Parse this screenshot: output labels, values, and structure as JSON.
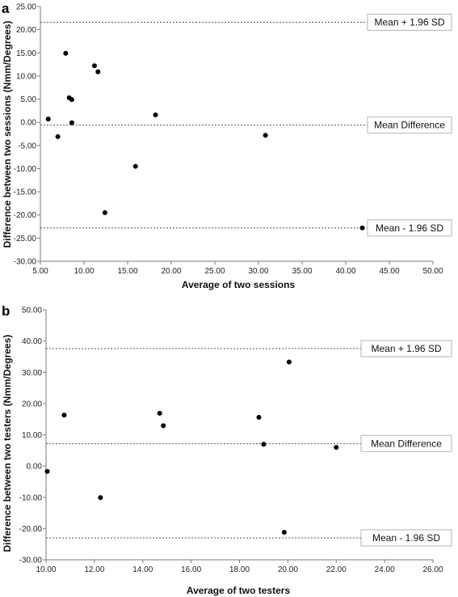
{
  "chart_data": [
    {
      "type": "scatter",
      "panel_label": "a",
      "xlabel": "Average of two sessions",
      "ylabel": "Difference between two sessions (Nmm/Degrees)",
      "xlim": [
        5,
        50
      ],
      "ylim": [
        -30,
        25
      ],
      "x_ticks": [
        "5.00",
        "10.00",
        "15.00",
        "20.00",
        "25.00",
        "30.00",
        "35.00",
        "40.00",
        "45.00",
        "50.00"
      ],
      "y_ticks": [
        "25.00",
        "20.00",
        "15.00",
        "10.00",
        "5.00",
        "0.00",
        "-5.00",
        "-10.00",
        "-15.00",
        "-20.00",
        "-25.00",
        "-30.00"
      ],
      "x_tick_values": [
        5,
        10,
        15,
        20,
        25,
        30,
        35,
        40,
        45,
        50
      ],
      "y_tick_values": [
        25,
        20,
        15,
        10,
        5,
        0,
        -5,
        -10,
        -15,
        -20,
        -25,
        -30
      ],
      "points": [
        {
          "x": 5.9,
          "y": 0.7
        },
        {
          "x": 7.0,
          "y": -3.1
        },
        {
          "x": 7.9,
          "y": 14.9
        },
        {
          "x": 8.3,
          "y": 5.3
        },
        {
          "x": 8.6,
          "y": 4.9
        },
        {
          "x": 8.6,
          "y": -0.1
        },
        {
          "x": 11.2,
          "y": 12.2
        },
        {
          "x": 11.6,
          "y": 10.9
        },
        {
          "x": 12.4,
          "y": -19.5
        },
        {
          "x": 15.9,
          "y": -9.5
        },
        {
          "x": 18.2,
          "y": 1.6
        },
        {
          "x": 30.8,
          "y": -2.8
        },
        {
          "x": 41.9,
          "y": -22.8
        }
      ],
      "reference_lines": [
        {
          "label": "Mean + 1.96 SD",
          "y": 21.6
        },
        {
          "label": "Mean Difference",
          "y": -0.6
        },
        {
          "label": "Mean - 1.96 SD",
          "y": -22.8
        }
      ],
      "grid": false,
      "color": "#000000"
    },
    {
      "type": "scatter",
      "panel_label": "b",
      "xlabel": "Average of two testers",
      "ylabel": "Difference between two testers (Nmm/Degrees)",
      "xlim": [
        10,
        26
      ],
      "ylim": [
        -30,
        50
      ],
      "x_ticks": [
        "10.00",
        "12.00",
        "14.00",
        "16.00",
        "18.00",
        "20.00",
        "22.00",
        "24.00",
        "26.00"
      ],
      "y_ticks": [
        "50.00",
        "40.00",
        "30.00",
        "20.00",
        "10.00",
        "0.00",
        "-10.00",
        "-20.00",
        "-30.00"
      ],
      "x_tick_values": [
        10,
        12,
        14,
        16,
        18,
        20,
        22,
        24,
        26
      ],
      "y_tick_values": [
        50,
        40,
        30,
        20,
        10,
        0,
        -10,
        -20,
        -30
      ],
      "points": [
        {
          "x": 10.05,
          "y": -1.7
        },
        {
          "x": 10.75,
          "y": 16.3
        },
        {
          "x": 12.25,
          "y": -10.1
        },
        {
          "x": 14.7,
          "y": 16.9
        },
        {
          "x": 14.85,
          "y": 12.9
        },
        {
          "x": 18.8,
          "y": 15.6
        },
        {
          "x": 19.0,
          "y": 7.0
        },
        {
          "x": 19.85,
          "y": -21.2
        },
        {
          "x": 20.05,
          "y": 33.3
        },
        {
          "x": 22.0,
          "y": 6.0
        }
      ],
      "reference_lines": [
        {
          "label": "Mean + 1.96 SD",
          "y": 37.6
        },
        {
          "label": "Mean Difference",
          "y": 7.2
        },
        {
          "label": "Mean - 1.96 SD",
          "y": -23.0
        }
      ],
      "grid": false,
      "color": "#000000"
    }
  ]
}
